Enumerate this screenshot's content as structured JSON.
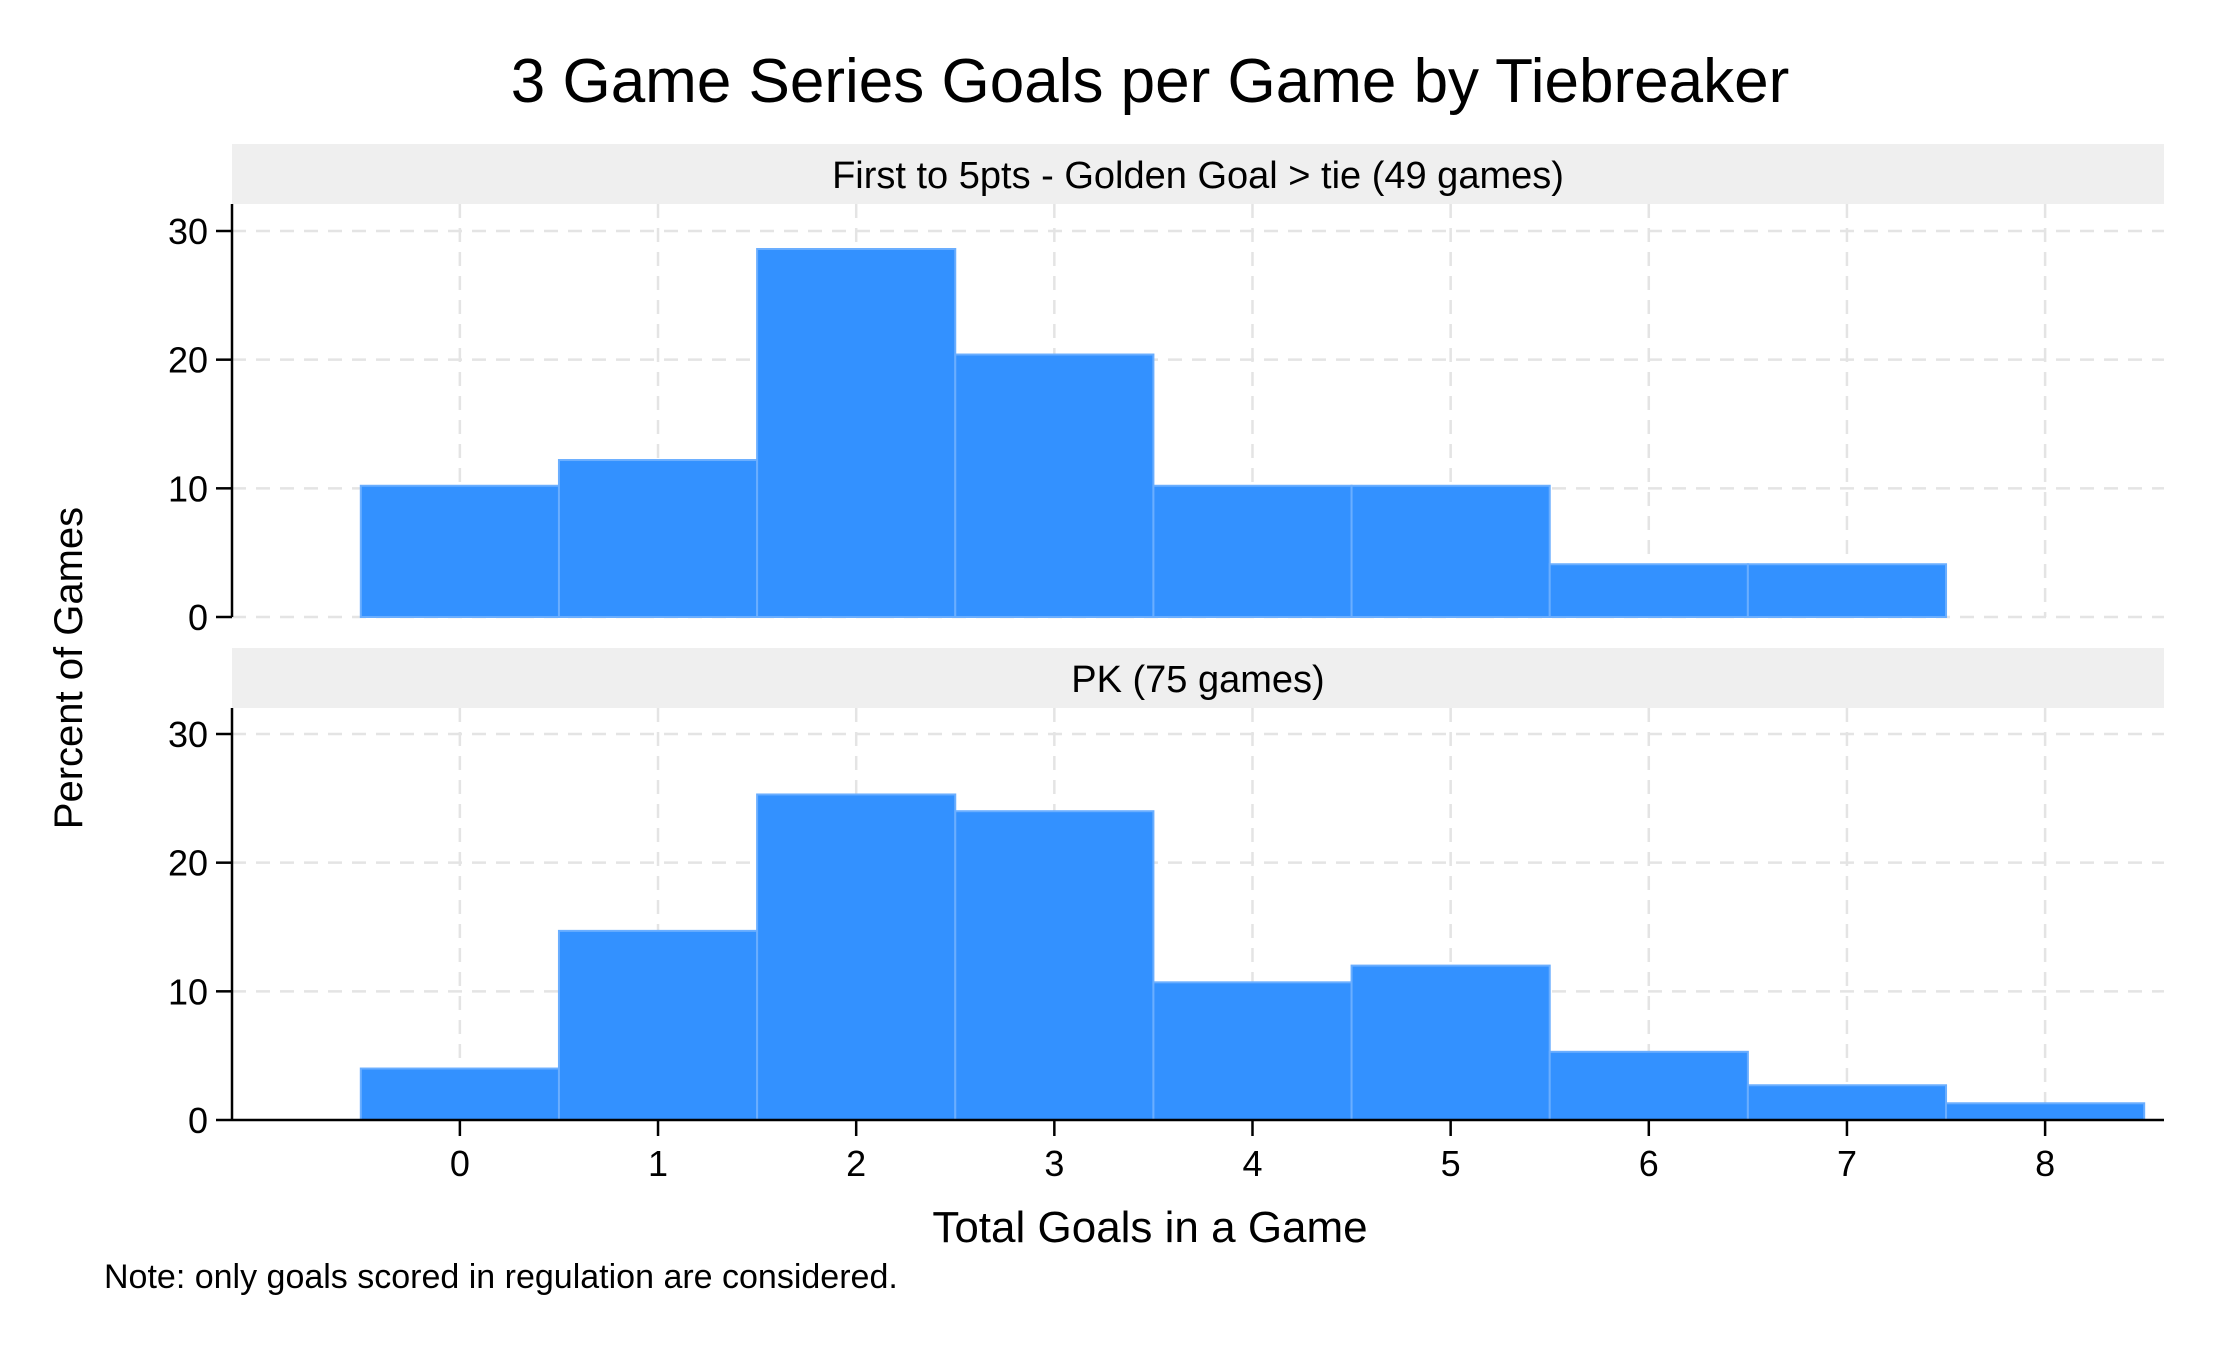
{
  "chart_data": {
    "type": "bar",
    "title": "3 Game Series Goals per Game by Tiebreaker",
    "xlabel": "Total Goals in a Game",
    "ylabel": "Percent of Games",
    "note": "Note: only goals scored in regulation are considered.",
    "x_ticks": [
      0,
      1,
      2,
      3,
      4,
      5,
      6,
      7,
      8
    ],
    "y_ticks": [
      0,
      10,
      20,
      30
    ],
    "xlim": [
      -1.15,
      8.6
    ],
    "ylim": [
      0,
      30
    ],
    "grid": true,
    "bar_color": "#3391ff",
    "panels": [
      {
        "title": "First to 5pts - Golden Goal > tie (49 games)",
        "x": [
          0,
          1,
          2,
          3,
          4,
          5,
          6,
          7
        ],
        "values": [
          10.2,
          12.2,
          28.6,
          20.4,
          10.2,
          10.2,
          4.1,
          4.1
        ]
      },
      {
        "title": "PK (75 games)",
        "x": [
          0,
          1,
          2,
          3,
          4,
          5,
          6,
          7,
          8
        ],
        "values": [
          4.0,
          14.7,
          25.3,
          24.0,
          10.7,
          12.0,
          5.3,
          2.7,
          1.3
        ]
      }
    ]
  }
}
